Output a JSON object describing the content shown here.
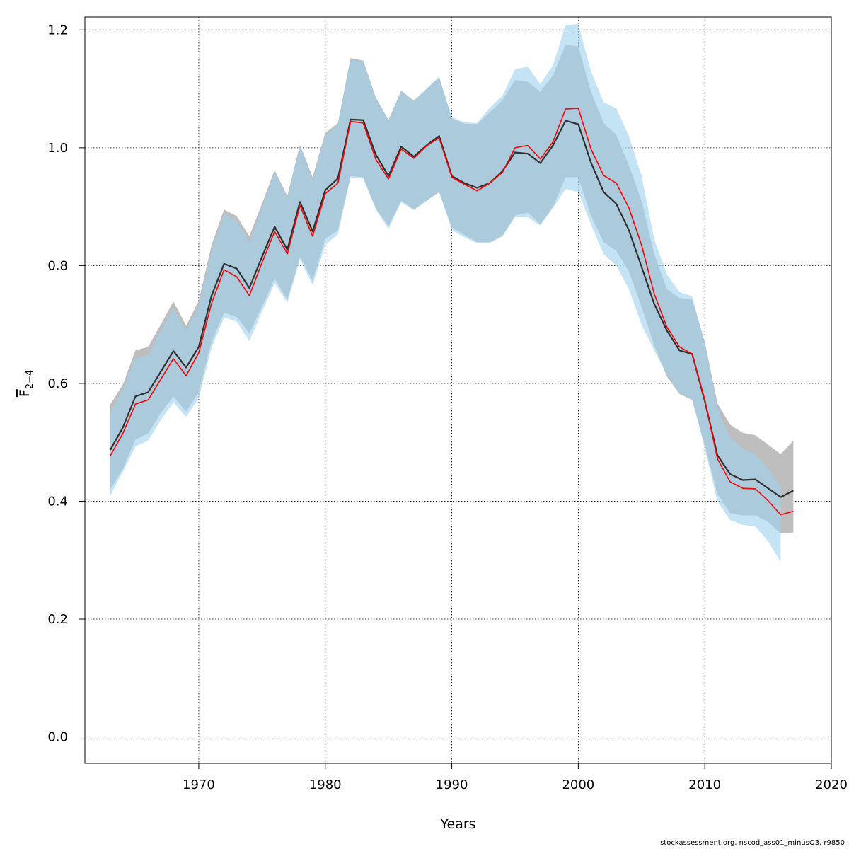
{
  "chart_data": {
    "type": "area",
    "xlabel": "Years",
    "ylabel": {
      "main": "F",
      "sub": "2−4"
    },
    "xlim": [
      1961,
      2020
    ],
    "ylim": [
      -0.045,
      1.222
    ],
    "xticks": [
      1970,
      1980,
      1990,
      2000,
      2010,
      2020
    ],
    "yticks": [
      0.0,
      0.2,
      0.4,
      0.6,
      0.8,
      1.0,
      1.2
    ],
    "ytick_labels": [
      "0.0",
      "0.2",
      "0.4",
      "0.6",
      "0.8",
      "1.0",
      "1.2"
    ],
    "grid": true,
    "colors": {
      "band_gray": "#bebebe",
      "band_blue": "#9fd2ef",
      "line_gray": "#303030",
      "line_red": "#ff0000"
    },
    "series": [
      {
        "kind": "band",
        "color_key": "band_gray",
        "x": [
          1963,
          1964,
          1965,
          1966,
          1967,
          1968,
          1969,
          1970,
          1971,
          1972,
          1973,
          1974,
          1975,
          1976,
          1977,
          1978,
          1979,
          1980,
          1981,
          1982,
          1983,
          1984,
          1985,
          1986,
          1987,
          1988,
          1989,
          1990,
          1991,
          1992,
          1993,
          1994,
          1995,
          1996,
          1997,
          1998,
          1999,
          2000,
          2001,
          2002,
          2003,
          2004,
          2005,
          2006,
          2007,
          2008,
          2009,
          2010,
          2011,
          2012,
          2013,
          2014,
          2015,
          2016,
          2017
        ],
        "upper": [
          0.564,
          0.598,
          0.656,
          0.662,
          0.7,
          0.739,
          0.698,
          0.74,
          0.834,
          0.895,
          0.884,
          0.85,
          0.905,
          0.962,
          0.918,
          1.005,
          0.95,
          1.025,
          1.042,
          1.152,
          1.148,
          1.085,
          1.047,
          1.097,
          1.08,
          1.1,
          1.12,
          1.05,
          1.041,
          1.04,
          1.06,
          1.08,
          1.115,
          1.112,
          1.095,
          1.123,
          1.175,
          1.172,
          1.095,
          1.042,
          1.022,
          0.97,
          0.91,
          0.82,
          0.76,
          0.745,
          0.742,
          0.67,
          0.566,
          0.53,
          0.516,
          0.512,
          0.496,
          0.48,
          0.503
        ],
        "lower": [
          0.42,
          0.455,
          0.505,
          0.515,
          0.55,
          0.578,
          0.552,
          0.585,
          0.67,
          0.72,
          0.713,
          0.685,
          0.73,
          0.778,
          0.742,
          0.815,
          0.775,
          0.845,
          0.86,
          0.952,
          0.95,
          0.897,
          0.867,
          0.91,
          0.895,
          0.91,
          0.925,
          0.865,
          0.852,
          0.84,
          0.84,
          0.85,
          0.885,
          0.89,
          0.87,
          0.9,
          0.95,
          0.95,
          0.885,
          0.84,
          0.825,
          0.79,
          0.73,
          0.665,
          0.612,
          0.582,
          0.572,
          0.495,
          0.412,
          0.38,
          0.376,
          0.376,
          0.365,
          0.345,
          0.347
        ]
      },
      {
        "kind": "band",
        "color_key": "band_blue",
        "x": [
          1963,
          1964,
          1965,
          1966,
          1967,
          1968,
          1969,
          1970,
          1971,
          1972,
          1973,
          1974,
          1975,
          1976,
          1977,
          1978,
          1979,
          1980,
          1981,
          1982,
          1983,
          1984,
          1985,
          1986,
          1987,
          1988,
          1989,
          1990,
          1991,
          1992,
          1993,
          1994,
          1995,
          1996,
          1997,
          1998,
          1999,
          2000,
          2001,
          2002,
          2003,
          2004,
          2005,
          2006,
          2007,
          2008,
          2009,
          2010,
          2011,
          2012,
          2013,
          2014,
          2015,
          2016
        ],
        "upper": [
          0.55,
          0.59,
          0.643,
          0.648,
          0.69,
          0.728,
          0.69,
          0.73,
          0.825,
          0.888,
          0.876,
          0.84,
          0.898,
          0.958,
          0.914,
          1.002,
          0.945,
          1.02,
          1.04,
          1.15,
          1.146,
          1.083,
          1.045,
          1.096,
          1.079,
          1.1,
          1.12,
          1.052,
          1.043,
          1.042,
          1.068,
          1.088,
          1.133,
          1.138,
          1.108,
          1.14,
          1.208,
          1.21,
          1.13,
          1.077,
          1.067,
          1.02,
          0.952,
          0.845,
          0.785,
          0.755,
          0.748,
          0.668,
          0.558,
          0.508,
          0.49,
          0.48,
          0.455,
          0.425
        ],
        "lower": [
          0.41,
          0.45,
          0.493,
          0.503,
          0.538,
          0.568,
          0.543,
          0.575,
          0.66,
          0.712,
          0.705,
          0.672,
          0.722,
          0.77,
          0.737,
          0.81,
          0.767,
          0.835,
          0.853,
          0.95,
          0.948,
          0.895,
          0.862,
          0.908,
          0.894,
          0.91,
          0.925,
          0.86,
          0.848,
          0.838,
          0.838,
          0.85,
          0.882,
          0.882,
          0.868,
          0.898,
          0.93,
          0.925,
          0.87,
          0.82,
          0.8,
          0.76,
          0.7,
          0.656,
          0.615,
          0.584,
          0.573,
          0.49,
          0.4,
          0.368,
          0.36,
          0.357,
          0.332,
          0.297
        ]
      },
      {
        "kind": "line",
        "color_key": "line_gray",
        "x": [
          1963,
          1964,
          1965,
          1966,
          1967,
          1968,
          1969,
          1970,
          1971,
          1972,
          1973,
          1974,
          1975,
          1976,
          1977,
          1978,
          1979,
          1980,
          1981,
          1982,
          1983,
          1984,
          1985,
          1986,
          1987,
          1988,
          1989,
          1990,
          1991,
          1992,
          1993,
          1994,
          1995,
          1996,
          1997,
          1998,
          1999,
          2000,
          2001,
          2002,
          2003,
          2004,
          2005,
          2006,
          2007,
          2008,
          2009,
          2010,
          2011,
          2012,
          2013,
          2014,
          2015,
          2016,
          2017
        ],
        "y": [
          0.487,
          0.525,
          0.578,
          0.585,
          0.62,
          0.655,
          0.627,
          0.662,
          0.748,
          0.803,
          0.795,
          0.762,
          0.815,
          0.866,
          0.827,
          0.908,
          0.858,
          0.928,
          0.948,
          1.048,
          1.047,
          0.988,
          0.952,
          1.002,
          0.985,
          1.004,
          1.02,
          0.952,
          0.94,
          0.932,
          0.94,
          0.96,
          0.992,
          0.99,
          0.974,
          1.004,
          1.046,
          1.04,
          0.975,
          0.925,
          0.905,
          0.86,
          0.798,
          0.735,
          0.69,
          0.656,
          0.65,
          0.57,
          0.478,
          0.446,
          0.436,
          0.437,
          0.422,
          0.407,
          0.418
        ]
      },
      {
        "kind": "line",
        "color_key": "line_red",
        "x": [
          1963,
          1964,
          1965,
          1966,
          1967,
          1968,
          1969,
          1970,
          1971,
          1972,
          1973,
          1974,
          1975,
          1976,
          1977,
          1978,
          1979,
          1980,
          1981,
          1982,
          1983,
          1984,
          1985,
          1986,
          1987,
          1988,
          1989,
          1990,
          1991,
          1992,
          1993,
          1994,
          1995,
          1996,
          1997,
          1998,
          1999,
          2000,
          2001,
          2002,
          2003,
          2004,
          2005,
          2006,
          2007,
          2008,
          2009,
          2010,
          2011,
          2012,
          2013,
          2014,
          2015,
          2016,
          2017
        ],
        "y": [
          0.477,
          0.515,
          0.565,
          0.572,
          0.607,
          0.642,
          0.613,
          0.652,
          0.735,
          0.793,
          0.781,
          0.749,
          0.805,
          0.858,
          0.82,
          0.902,
          0.85,
          0.922,
          0.94,
          1.045,
          1.042,
          0.98,
          0.947,
          0.998,
          0.982,
          1.003,
          1.017,
          0.95,
          0.938,
          0.927,
          0.94,
          0.958,
          1.0,
          1.004,
          0.981,
          1.01,
          1.066,
          1.067,
          0.998,
          0.953,
          0.94,
          0.898,
          0.835,
          0.752,
          0.696,
          0.662,
          0.65,
          0.572,
          0.472,
          0.433,
          0.422,
          0.421,
          0.401,
          0.377,
          0.383
        ]
      }
    ]
  },
  "footer": "stockassessment.org, nscod_ass01_minusQ3, r9850"
}
